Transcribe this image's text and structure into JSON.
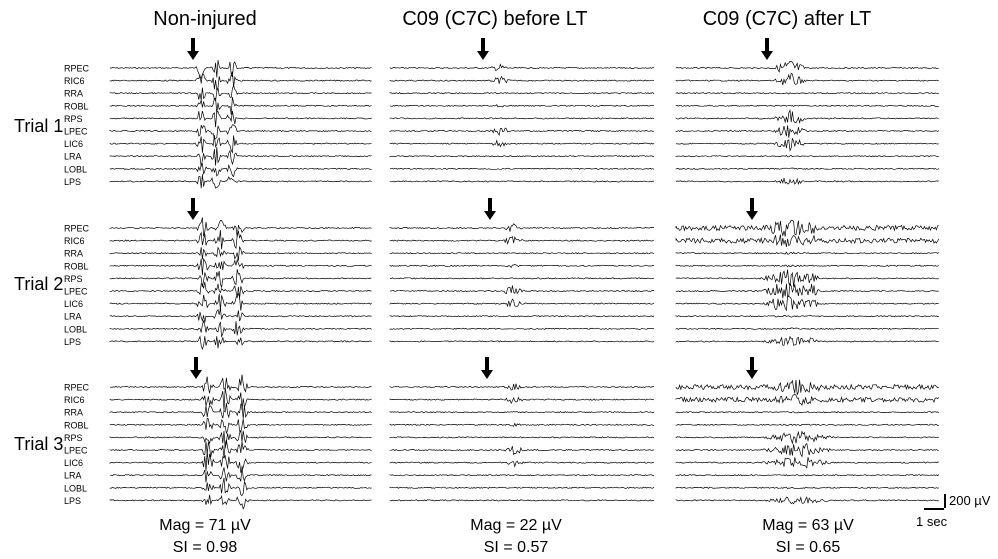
{
  "chart_data": {
    "type": "line",
    "columns": [
      {
        "title": "Non-injured",
        "mag": "Mag = 71 µV",
        "si": "SI = 0.98"
      },
      {
        "title": "C09 (C7C) before LT",
        "mag": "Mag = 22 µV",
        "si": "SI = 0.57"
      },
      {
        "title": "C09 (C7C) after LT",
        "mag": "Mag = 63 µV",
        "si": "SI = 0.65"
      }
    ],
    "trials": [
      "Trial 1",
      "Trial 2",
      "Trial 3"
    ],
    "channels": [
      "RPEC",
      "RIC6",
      "RRA",
      "ROBL",
      "RPS",
      "LPEC",
      "LIC6",
      "LRA",
      "LOBL",
      "LPS"
    ],
    "scale_bar": {
      "amplitude": "200 µV",
      "time": "1 sec"
    },
    "stimulus_marker": "arrow",
    "colors": {
      "trace": "#000000",
      "background": "#ffffff"
    }
  }
}
